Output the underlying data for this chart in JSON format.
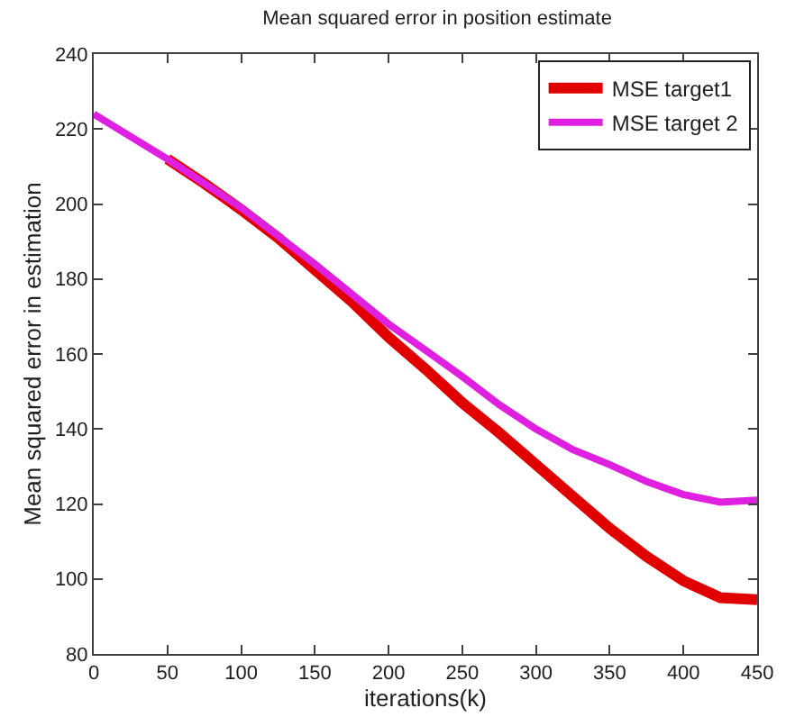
{
  "chart_data": {
    "type": "line",
    "title": "Mean squared error in position estimate",
    "xlabel": "iterations(k)",
    "ylabel": "Mean squared error in estimation",
    "x": [
      0,
      25,
      50,
      75,
      100,
      125,
      150,
      175,
      200,
      225,
      250,
      275,
      300,
      325,
      350,
      375,
      400,
      425,
      450
    ],
    "series": [
      {
        "name": "MSE target1",
        "color": "#e00000",
        "values": [
          null,
          null,
          212,
          205.5,
          198.5,
          191,
          182.5,
          174,
          164.5,
          156,
          147,
          139,
          130.5,
          122,
          113.5,
          106,
          99.5,
          95,
          94.5
        ]
      },
      {
        "name": "MSE target 2",
        "color": "#e020e0",
        "values": [
          224,
          218,
          212,
          205.5,
          199,
          191.5,
          184,
          176,
          168,
          161,
          154,
          146.5,
          140,
          134.5,
          130.5,
          126,
          122.5,
          120.5,
          121
        ]
      }
    ],
    "xlim": [
      0,
      450
    ],
    "xticks": [
      0,
      50,
      100,
      150,
      200,
      250,
      300,
      350,
      400,
      450
    ],
    "ylim": [
      80,
      240
    ],
    "yticks": [
      80,
      100,
      120,
      140,
      160,
      180,
      200,
      220,
      240
    ],
    "legend": "top right",
    "marker": "none",
    "line_style": "solid"
  }
}
